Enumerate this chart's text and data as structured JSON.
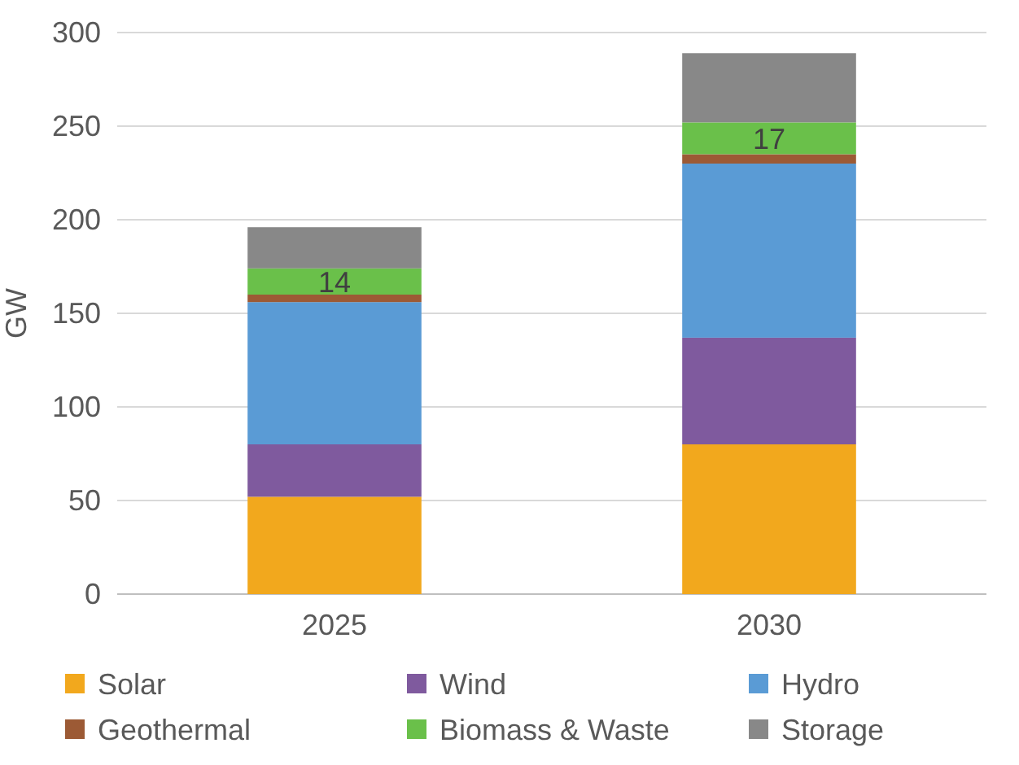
{
  "chart_data": {
    "type": "bar",
    "stacked": true,
    "categories": [
      "2025",
      "2030"
    ],
    "ylabel": "GW",
    "ylim": [
      0,
      300
    ],
    "yticks": [
      0,
      50,
      100,
      150,
      200,
      250,
      300
    ],
    "grid": "y",
    "legend": "bottom",
    "series": [
      {
        "name": "Solar",
        "color": "#f2a81d",
        "values": [
          52,
          80
        ]
      },
      {
        "name": "Wind",
        "color": "#7f5a9e",
        "values": [
          28,
          57
        ]
      },
      {
        "name": "Hydro",
        "color": "#5a9bd5",
        "values": [
          76,
          93
        ]
      },
      {
        "name": "Geothermal",
        "color": "#9c5a35",
        "values": [
          4,
          5
        ]
      },
      {
        "name": "Biomass & Waste",
        "color": "#6ac04a",
        "values": [
          14,
          17
        ],
        "value_labels": [
          "14",
          "17"
        ]
      },
      {
        "name": "Storage",
        "color": "#888888",
        "values": [
          22,
          37
        ]
      }
    ]
  }
}
